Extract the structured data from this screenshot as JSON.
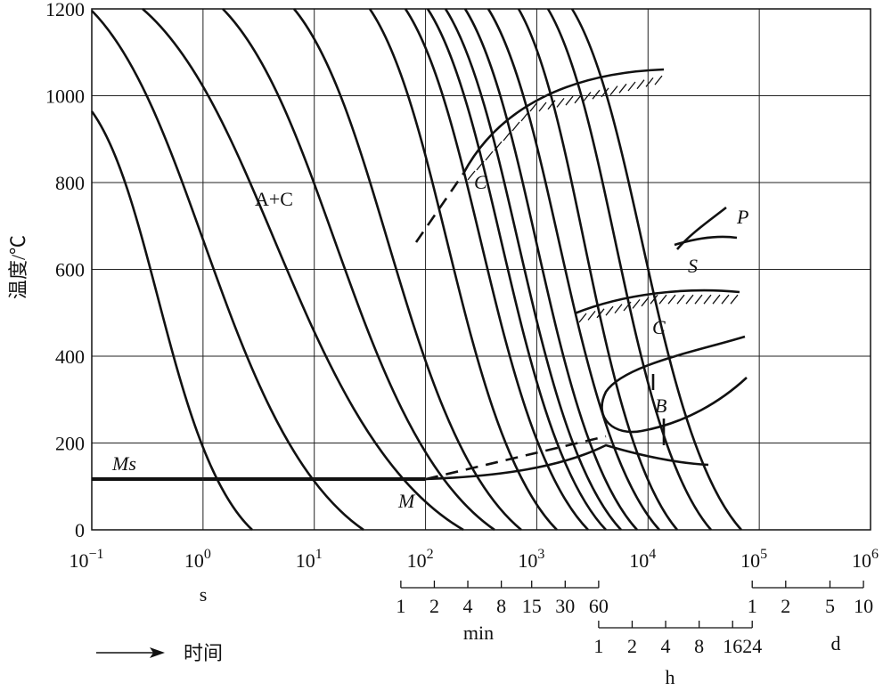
{
  "chart_data": {
    "type": "cct",
    "ylabel": "温度/℃",
    "xlabel": "时间",
    "log_x": true,
    "grid": true,
    "xlim": [
      0.1,
      1000000
    ],
    "ylim": [
      0,
      1200
    ],
    "yticks": [
      0,
      200,
      400,
      600,
      800,
      1000,
      1200
    ],
    "xticks": [
      {
        "value": 0.1,
        "label": "10",
        "exponent": "−1"
      },
      {
        "value": 1,
        "label": "10",
        "exponent": "0"
      },
      {
        "value": 10,
        "label": "10",
        "exponent": "1"
      },
      {
        "value": 100,
        "label": "10",
        "exponent": "2"
      },
      {
        "value": 1000,
        "label": "10",
        "exponent": "3"
      },
      {
        "value": 10000,
        "label": "10",
        "exponent": "4"
      },
      {
        "value": 100000,
        "label": "10",
        "exponent": "5"
      },
      {
        "value": 1000000,
        "label": "10",
        "exponent": "6"
      }
    ],
    "time_scales": [
      {
        "unit": "s"
      },
      {
        "unit": "min",
        "ticks": [
          {
            "value": 60,
            "label": "1"
          },
          {
            "value": 120,
            "label": "2"
          },
          {
            "value": 240,
            "label": "4"
          },
          {
            "value": 480,
            "label": "8"
          },
          {
            "value": 900,
            "label": "15"
          },
          {
            "value": 1800,
            "label": "30"
          },
          {
            "value": 3600,
            "label": "60"
          }
        ]
      },
      {
        "unit": "h",
        "ticks": [
          {
            "value": 3600,
            "label": "1"
          },
          {
            "value": 7200,
            "label": "2"
          },
          {
            "value": 14400,
            "label": "4"
          },
          {
            "value": 28800,
            "label": "8"
          },
          {
            "value": 57600,
            "label": "16"
          },
          {
            "value": 86400,
            "label": "24"
          }
        ]
      },
      {
        "unit": "d",
        "ticks": [
          {
            "value": 86400,
            "label": "1"
          },
          {
            "value": 172800,
            "label": "2"
          },
          {
            "value": 432000,
            "label": "5"
          },
          {
            "value": 864000,
            "label": "10"
          }
        ]
      }
    ],
    "annotations": [
      "A+C",
      "C",
      "P",
      "S",
      "C",
      "B",
      "M",
      "Ms"
    ]
  }
}
